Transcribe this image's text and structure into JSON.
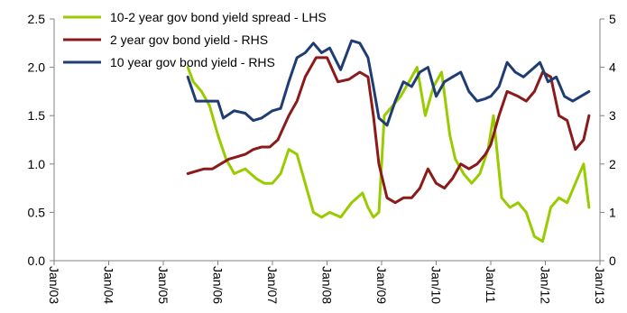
{
  "chart_data": {
    "type": "line",
    "title": "",
    "xlabel": "",
    "ylabel_left": "",
    "ylabel_right": "",
    "x_ticks": [
      "Jan/03",
      "Jan/04",
      "Jan/05",
      "Jan/06",
      "Jan/07",
      "Jan/08",
      "Jan/09",
      "Jan/10",
      "Jan/11",
      "Jan/12",
      "Jan/13"
    ],
    "y_left": {
      "ticks": [
        "0.0",
        "0.5",
        "1.0",
        "1.5",
        "2.0",
        "2.5"
      ],
      "range": [
        0,
        2.5
      ]
    },
    "y_right": {
      "ticks": [
        "0",
        "1",
        "2",
        "3",
        "4",
        "5"
      ],
      "range": [
        0,
        5
      ]
    },
    "legend_position": "top-left",
    "series": [
      {
        "name": "10-2 year gov bond yield spread - LHS",
        "axis": "left",
        "color": "#99cc00",
        "x": [
          2005.45,
          2005.55,
          2005.7,
          2005.85,
          2006.0,
          2006.15,
          2006.3,
          2006.5,
          2006.7,
          2006.85,
          2007.0,
          2007.15,
          2007.3,
          2007.45,
          2007.6,
          2007.75,
          2007.9,
          2008.05,
          2008.25,
          2008.45,
          2008.65,
          2008.75,
          2008.85,
          2008.95,
          2009.05,
          2009.2,
          2009.35,
          2009.5,
          2009.65,
          2009.8,
          2009.95,
          2010.1,
          2010.25,
          2010.35,
          2010.5,
          2010.65,
          2010.8,
          2010.95,
          2011.05,
          2011.2,
          2011.35,
          2011.5,
          2011.65,
          2011.8,
          2011.95,
          2012.1,
          2012.25,
          2012.4,
          2012.55,
          2012.7,
          2012.8
        ],
        "values": [
          2.0,
          1.85,
          1.75,
          1.6,
          1.3,
          1.05,
          0.9,
          0.95,
          0.85,
          0.8,
          0.8,
          0.9,
          1.15,
          1.1,
          0.8,
          0.5,
          0.45,
          0.5,
          0.45,
          0.6,
          0.7,
          0.55,
          0.45,
          0.5,
          1.5,
          1.6,
          1.7,
          1.85,
          2.0,
          1.5,
          1.8,
          1.95,
          1.3,
          1.05,
          0.9,
          0.8,
          0.9,
          1.15,
          1.5,
          0.65,
          0.55,
          0.6,
          0.5,
          0.25,
          0.2,
          0.55,
          0.65,
          0.6,
          0.8,
          1.0,
          0.55
        ]
      },
      {
        "name": "2 year gov bond yield - RHS",
        "axis": "right",
        "color": "#8b1a1a",
        "x": [
          2005.45,
          2005.6,
          2005.75,
          2005.9,
          2006.05,
          2006.2,
          2006.35,
          2006.5,
          2006.65,
          2006.8,
          2006.95,
          2007.1,
          2007.3,
          2007.45,
          2007.6,
          2007.8,
          2008.0,
          2008.2,
          2008.4,
          2008.6,
          2008.75,
          2008.85,
          2008.95,
          2009.1,
          2009.25,
          2009.4,
          2009.55,
          2009.7,
          2009.85,
          2010.0,
          2010.15,
          2010.3,
          2010.45,
          2010.6,
          2010.75,
          2010.9,
          2011.0,
          2011.15,
          2011.3,
          2011.5,
          2011.65,
          2011.8,
          2011.95,
          2012.1,
          2012.25,
          2012.4,
          2012.55,
          2012.7,
          2012.8
        ],
        "values": [
          1.8,
          1.85,
          1.9,
          1.9,
          2.0,
          2.1,
          2.15,
          2.2,
          2.3,
          2.35,
          2.35,
          2.5,
          3.0,
          3.3,
          3.8,
          4.2,
          4.2,
          3.7,
          3.75,
          3.9,
          3.8,
          3.0,
          2.0,
          1.3,
          1.2,
          1.3,
          1.3,
          1.5,
          1.9,
          1.6,
          1.5,
          1.7,
          2.0,
          1.9,
          2.0,
          2.2,
          2.4,
          3.0,
          3.5,
          3.4,
          3.3,
          3.5,
          3.9,
          3.8,
          3.0,
          2.9,
          2.3,
          2.5,
          3.0
        ]
      },
      {
        "name": "10 year gov bond yield - RHS",
        "axis": "right",
        "color": "#1f3d73",
        "x": [
          2005.45,
          2005.6,
          2005.8,
          2006.0,
          2006.1,
          2006.3,
          2006.5,
          2006.65,
          2006.8,
          2007.0,
          2007.15,
          2007.3,
          2007.45,
          2007.6,
          2007.75,
          2007.9,
          2008.05,
          2008.25,
          2008.45,
          2008.6,
          2008.75,
          2008.85,
          2008.95,
          2009.1,
          2009.25,
          2009.4,
          2009.55,
          2009.7,
          2009.85,
          2010.0,
          2010.15,
          2010.3,
          2010.45,
          2010.6,
          2010.75,
          2010.9,
          2011.0,
          2011.15,
          2011.3,
          2011.45,
          2011.6,
          2011.75,
          2011.9,
          2012.05,
          2012.2,
          2012.35,
          2012.5,
          2012.65,
          2012.8
        ],
        "values": [
          3.8,
          3.3,
          3.3,
          3.3,
          2.95,
          3.1,
          3.05,
          2.9,
          2.95,
          3.1,
          3.15,
          3.7,
          4.2,
          4.3,
          4.5,
          4.3,
          4.4,
          3.95,
          4.55,
          4.5,
          4.2,
          3.6,
          2.95,
          2.8,
          3.3,
          3.7,
          3.6,
          3.9,
          4.0,
          3.4,
          3.7,
          3.8,
          3.9,
          3.5,
          3.3,
          3.35,
          3.4,
          3.6,
          4.1,
          3.9,
          3.8,
          3.95,
          4.1,
          3.7,
          3.8,
          3.4,
          3.3,
          3.4,
          3.5
        ]
      }
    ]
  }
}
